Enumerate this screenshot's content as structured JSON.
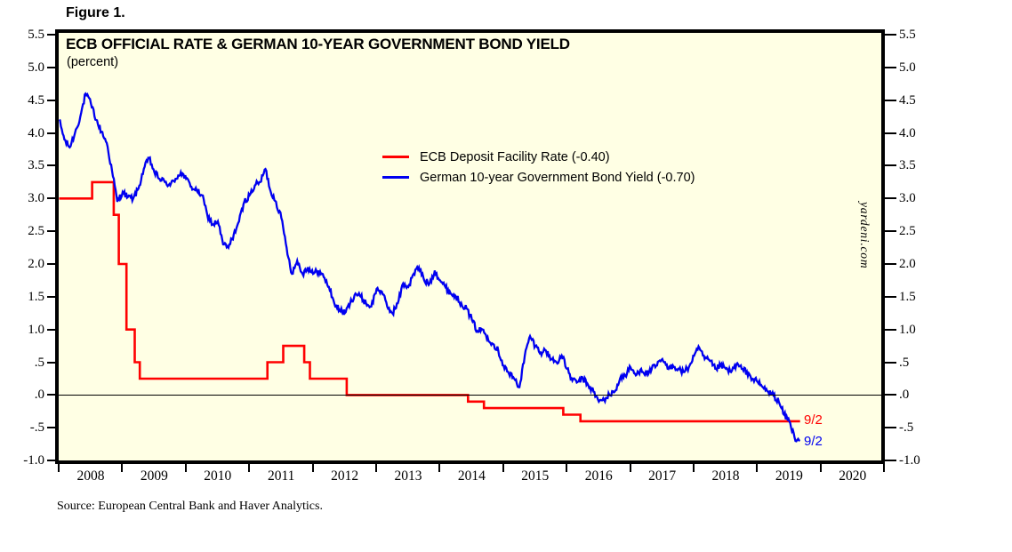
{
  "figure_label": "Figure 1.",
  "title": "ECB OFFICIAL RATE & GERMAN 10-YEAR GOVERNMENT BOND YIELD",
  "subtitle": "(percent)",
  "watermark": "yardeni.com",
  "source": "Source: European Central Bank and Haver Analytics.",
  "annotations": {
    "red_label": "9/2",
    "blue_label": "9/2"
  },
  "colors": {
    "red": "#FF0000",
    "blue": "#0000F0",
    "plot_bg": "#FFFFE4",
    "axis": "#000000"
  },
  "legend": [
    {
      "label": "ECB Deposit Facility Rate (-0.40)",
      "color": "#FF0000"
    },
    {
      "label": "German 10-year Government Bond Yield (-0.70)",
      "color": "#0000F0"
    }
  ],
  "y_axis": {
    "tick_labels": [
      "5.5",
      "5.0",
      "4.5",
      "4.0",
      "3.5",
      "3.0",
      "2.5",
      "2.0",
      "1.5",
      "1.0",
      ".5",
      ".0",
      "-.5",
      "-1.0"
    ],
    "tick_values": [
      5.5,
      5.0,
      4.5,
      4.0,
      3.5,
      3.0,
      2.5,
      2.0,
      1.5,
      1.0,
      0.5,
      0.0,
      -0.5,
      -1.0
    ]
  },
  "x_axis": {
    "year_labels": [
      "2008",
      "2009",
      "2010",
      "2011",
      "2012",
      "2013",
      "2014",
      "2015",
      "2016",
      "2017",
      "2018",
      "2019",
      "2020"
    ]
  },
  "chart_data": {
    "type": "line",
    "title": "ECB OFFICIAL RATE & GERMAN 10-YEAR GOVERNMENT BOND YIELD",
    "ylabel": "percent",
    "ylim": [
      -1.0,
      5.5
    ],
    "xlim": [
      2008.0,
      2020.95
    ],
    "grid": "zero-line-only",
    "legend_position": "upper-center-inside",
    "series": [
      {
        "name": "ECB Deposit Facility Rate",
        "color": "#FF0000",
        "style": "step",
        "last_value": -0.4,
        "end_label": "9/2",
        "end_t": 2019.67,
        "points": [
          [
            2008.0,
            3.0
          ],
          [
            2008.52,
            3.25
          ],
          [
            2008.86,
            2.75
          ],
          [
            2008.94,
            2.0
          ],
          [
            2009.06,
            1.0
          ],
          [
            2009.19,
            0.5
          ],
          [
            2009.27,
            0.25
          ],
          [
            2011.28,
            0.5
          ],
          [
            2011.53,
            0.75
          ],
          [
            2011.86,
            0.5
          ],
          [
            2011.95,
            0.25
          ],
          [
            2012.53,
            0.0
          ],
          [
            2014.44,
            -0.1
          ],
          [
            2014.69,
            -0.2
          ],
          [
            2015.94,
            -0.3
          ],
          [
            2016.21,
            -0.4
          ]
        ]
      },
      {
        "name": "German 10-year Government Bond Yield",
        "color": "#0000F0",
        "style": "line",
        "last_value": -0.7,
        "end_label": "9/2",
        "start_t": 2008.0,
        "step_t": 0.0833333,
        "values": [
          4.2,
          3.9,
          3.78,
          4.0,
          4.25,
          4.6,
          4.45,
          4.2,
          4.02,
          3.85,
          3.42,
          2.95,
          3.1,
          3.02,
          3.0,
          3.15,
          3.45,
          3.62,
          3.4,
          3.3,
          3.25,
          3.2,
          3.3,
          3.4,
          3.3,
          3.18,
          3.12,
          3.05,
          2.75,
          2.6,
          2.65,
          2.3,
          2.25,
          2.45,
          2.65,
          2.95,
          3.05,
          3.2,
          3.25,
          3.45,
          3.1,
          2.95,
          2.7,
          2.25,
          1.85,
          2.05,
          1.85,
          1.95,
          1.85,
          1.9,
          1.8,
          1.65,
          1.4,
          1.3,
          1.25,
          1.4,
          1.55,
          1.5,
          1.4,
          1.35,
          1.62,
          1.58,
          1.35,
          1.25,
          1.4,
          1.7,
          1.65,
          1.85,
          1.95,
          1.75,
          1.7,
          1.9,
          1.75,
          1.65,
          1.55,
          1.5,
          1.4,
          1.32,
          1.15,
          0.98,
          1.0,
          0.88,
          0.78,
          0.68,
          0.45,
          0.33,
          0.25,
          0.12,
          0.6,
          0.9,
          0.75,
          0.65,
          0.68,
          0.55,
          0.5,
          0.6,
          0.4,
          0.22,
          0.2,
          0.25,
          0.15,
          0.05,
          -0.1,
          -0.07,
          0.0,
          0.05,
          0.25,
          0.3,
          0.42,
          0.3,
          0.4,
          0.32,
          0.4,
          0.45,
          0.55,
          0.4,
          0.45,
          0.4,
          0.35,
          0.42,
          0.6,
          0.72,
          0.55,
          0.52,
          0.4,
          0.45,
          0.4,
          0.35,
          0.47,
          0.4,
          0.35,
          0.25,
          0.2,
          0.12,
          0.05,
          0.0,
          -0.1,
          -0.3,
          -0.4,
          -0.65,
          -0.7
        ]
      }
    ]
  }
}
